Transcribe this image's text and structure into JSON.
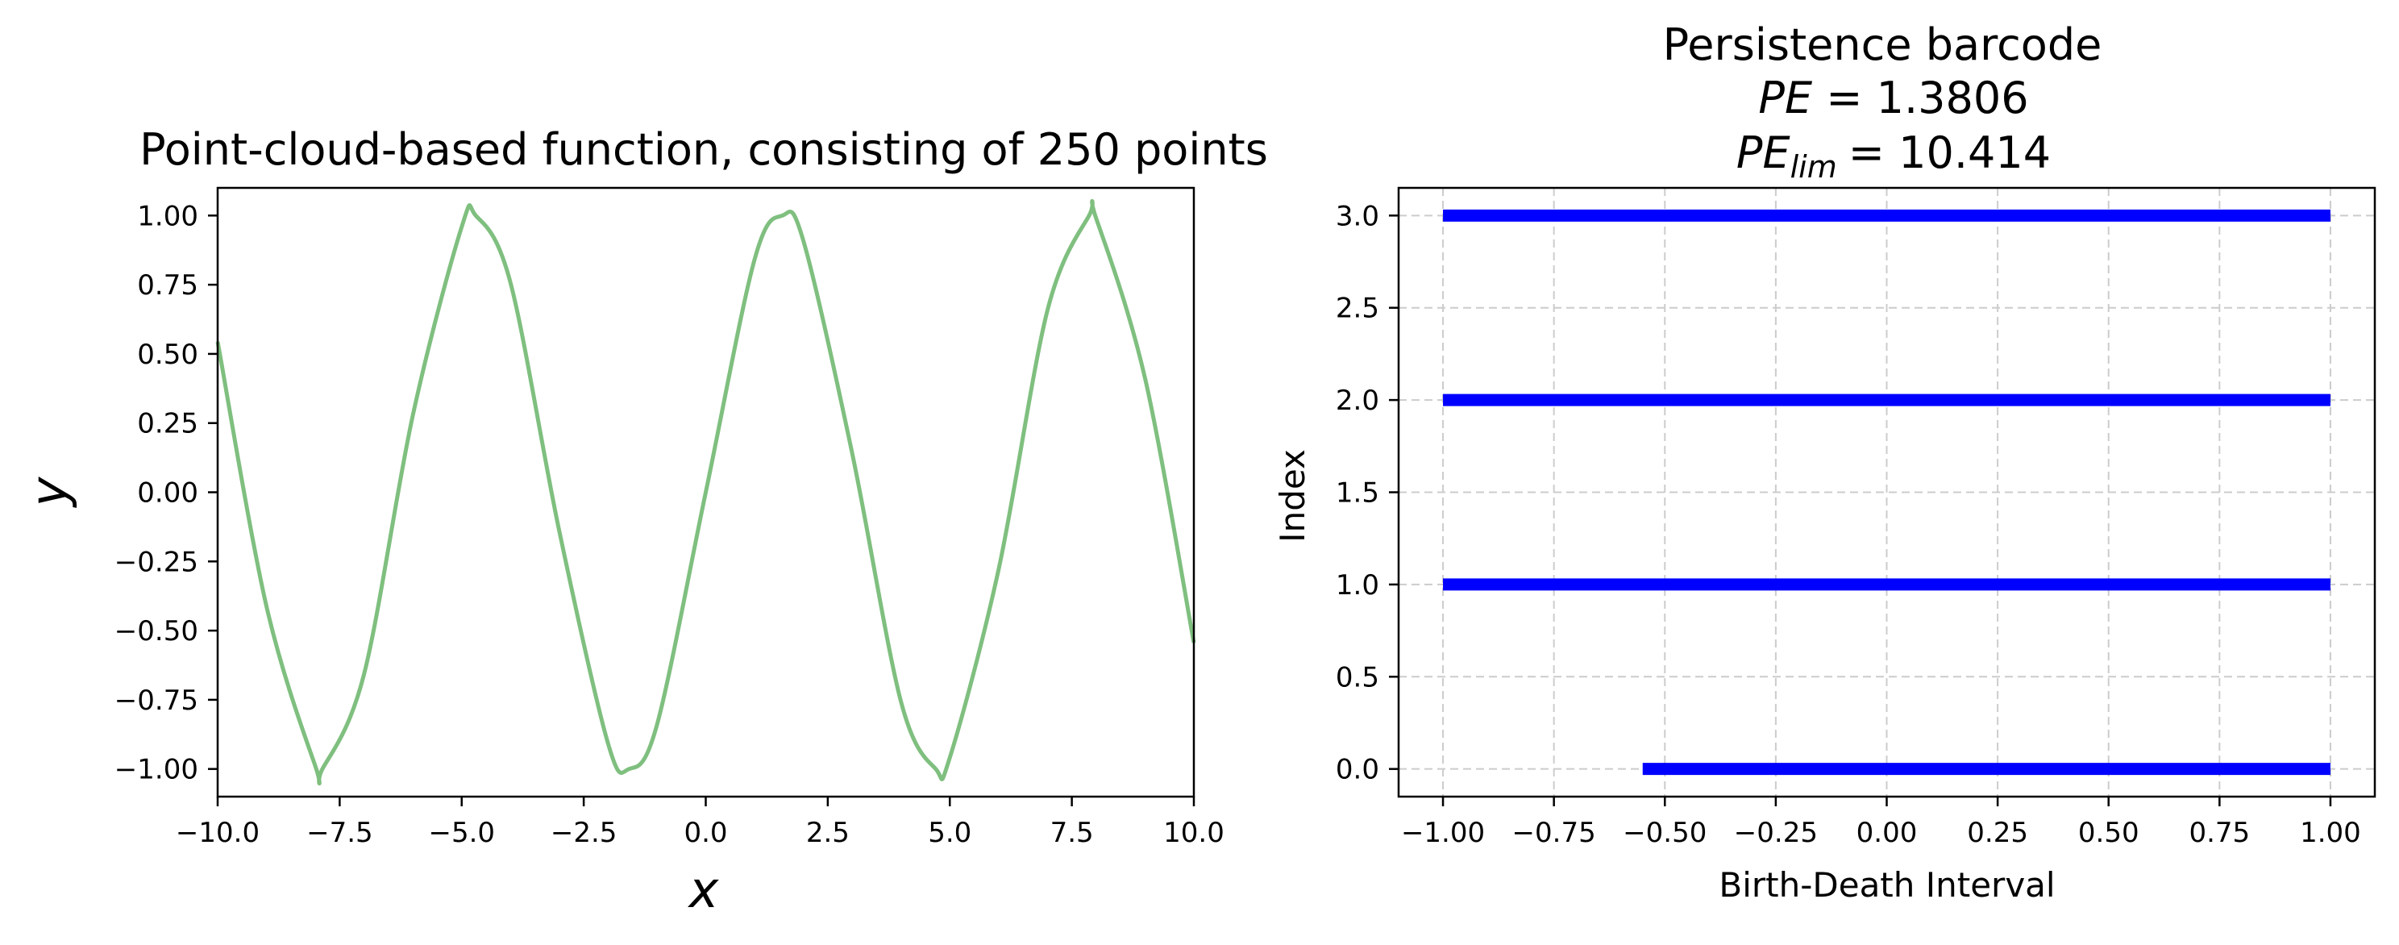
{
  "chart_data": [
    {
      "type": "line",
      "title": "Point-cloud-based function, consisting of 250 points",
      "xlabel": "x",
      "ylabel": "y",
      "xlim": [
        -10,
        10
      ],
      "ylim": [
        -1.1,
        1.1
      ],
      "xticks": [
        "−10.0",
        "−7.5",
        "−5.0",
        "−2.5",
        "0.0",
        "2.5",
        "5.0",
        "7.5",
        "10.0"
      ],
      "yticks": [
        "−1.00",
        "−0.75",
        "−0.50",
        "−0.25",
        "0.00",
        "0.25",
        "0.50",
        "0.75",
        "1.00"
      ],
      "grid": false,
      "series_color": "#7fbf7f",
      "series": [
        {
          "points": 250,
          "x": [
            -10.0,
            -9.0,
            -8.0,
            -7.854,
            -7.0,
            -6.0,
            -5.0,
            -4.712,
            -4.0,
            -3.0,
            -2.0,
            -1.571,
            -1.0,
            0.0,
            1.0,
            1.571,
            2.0,
            3.0,
            4.0,
            4.712,
            5.0,
            6.0,
            7.0,
            7.854,
            8.0,
            9.0,
            10.0
          ],
          "y": [
            0.544,
            -0.412,
            -0.989,
            -1.0,
            -0.657,
            0.279,
            0.959,
            1.0,
            0.757,
            -0.141,
            -0.909,
            -1.0,
            -0.841,
            0.0,
            0.841,
            1.0,
            0.909,
            0.141,
            -0.757,
            -1.0,
            -0.959,
            -0.279,
            0.657,
            1.0,
            0.989,
            0.412,
            -0.544
          ]
        }
      ]
    },
    {
      "type": "bar",
      "title": "Persistence barcode",
      "subtitle_pe": "= 1.3806",
      "subtitle_pelim": "= 10.414",
      "pe_symbol": "PE",
      "pelim_symbol": "PE",
      "pelim_subscript": "lim",
      "xlabel": "Birth-Death Interval",
      "ylabel": "Index",
      "xlim": [
        -1.1,
        1.1
      ],
      "ylim": [
        -0.15,
        3.15
      ],
      "xticks": [
        "−1.00",
        "−0.75",
        "−0.50",
        "−0.25",
        "0.00",
        "0.25",
        "0.50",
        "0.75",
        "1.00"
      ],
      "yticks": [
        "0.0",
        "0.5",
        "1.0",
        "1.5",
        "2.0",
        "2.5",
        "3.0"
      ],
      "grid": true,
      "bar_color": "#0000ff",
      "bars": [
        {
          "index": 0,
          "birth": -0.55,
          "death": 1.0
        },
        {
          "index": 1,
          "birth": -1.0,
          "death": 1.0
        },
        {
          "index": 2,
          "birth": -1.0,
          "death": 1.0
        },
        {
          "index": 3,
          "birth": -1.0,
          "death": 1.0
        }
      ]
    }
  ]
}
